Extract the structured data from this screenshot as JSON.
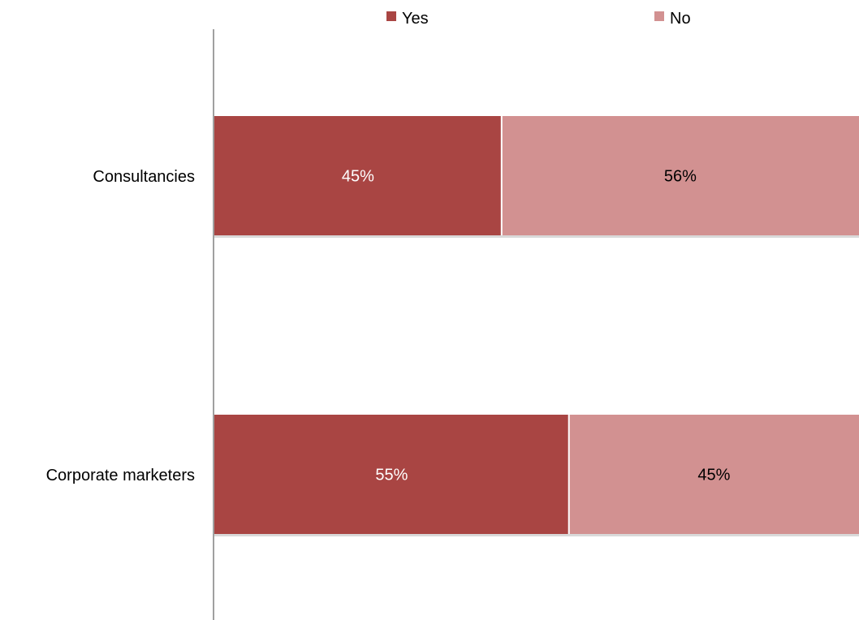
{
  "chart_data": {
    "type": "bar",
    "orientation": "horizontal",
    "stacked": true,
    "percent_stacked": true,
    "categories": [
      "Consultancies",
      "Corporate marketers"
    ],
    "series": [
      {
        "name": "Yes",
        "color": "#A94543",
        "label_color": "#FFFFFF",
        "values": [
          45,
          55
        ],
        "labels": [
          "45%",
          "55%"
        ]
      },
      {
        "name": "No",
        "color": "#D29191",
        "label_color": "#000000",
        "values": [
          56,
          45
        ],
        "labels": [
          "56%",
          "45%"
        ]
      }
    ],
    "title": "",
    "xlabel": "",
    "ylabel": "",
    "grid": false,
    "legend": "top",
    "axis_color": "#808080"
  }
}
